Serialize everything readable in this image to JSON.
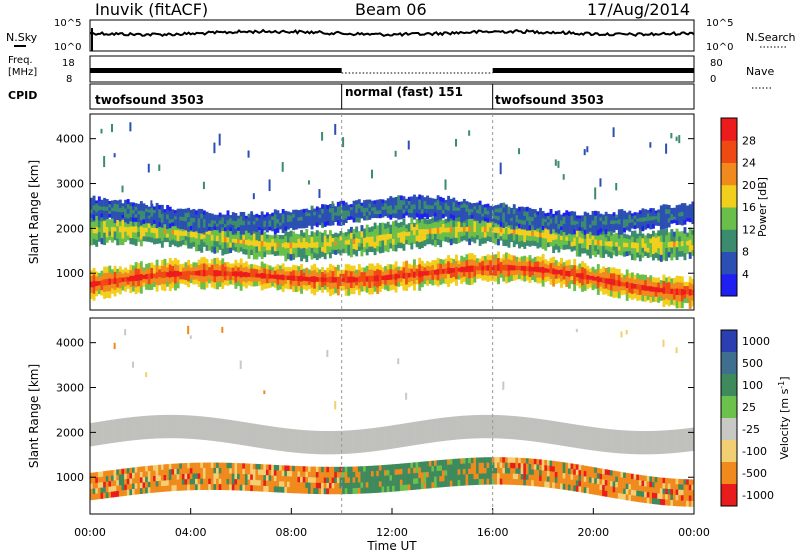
{
  "header": {
    "station": "Inuvik (fitACF)",
    "beam": "Beam 06",
    "date": "17/Aug/2014"
  },
  "top_panels": {
    "nsky_label": "N.Sky",
    "nsearch_label": "N.Search",
    "noise_ticks_left": [
      "10^5",
      "10^0"
    ],
    "noise_ticks_right": [
      "10^5",
      "10^0"
    ],
    "freq_label": "Freq.",
    "freq_unit": "[MHz]",
    "freq_ticks": [
      "18",
      "8"
    ],
    "nave_label": "Nave",
    "nave_ticks": [
      "80",
      "0"
    ],
    "cpid_label": "CPID",
    "cpid_segments": [
      {
        "label": "twofsound 3503",
        "start_hour": 0,
        "end_hour": 10
      },
      {
        "label": "normal (fast) 151",
        "start_hour": 10,
        "end_hour": 16
      },
      {
        "label": "twofsound 3503",
        "start_hour": 16,
        "end_hour": 24
      }
    ]
  },
  "chart_data": [
    {
      "type": "heatmap",
      "name": "power",
      "ylabel": "Slant Range [km]",
      "xlabel": "",
      "ylim": [
        180,
        4550
      ],
      "xlim": [
        0,
        24
      ],
      "y_ticks": [
        1000,
        2000,
        3000,
        4000
      ],
      "colorbar_label": "Power [dB]",
      "colorbar_ticks": [
        "4",
        "8",
        "12",
        "16",
        "20",
        "24",
        "28"
      ],
      "colorbar_range": [
        0,
        30
      ],
      "colors": [
        "#1f1ff2",
        "#2c4fb4",
        "#3b8b6e",
        "#69bf4a",
        "#f2cf1c",
        "#f08a1c",
        "#f04a14",
        "#ec1c1c"
      ],
      "bands": [
        {
          "center_km": 900,
          "width_km": 260,
          "value_db": 26
        },
        {
          "center_km": 1800,
          "width_km": 260,
          "value_db": 16
        },
        {
          "center_km": 2300,
          "width_km": 200,
          "value_db": 8
        }
      ]
    },
    {
      "type": "heatmap",
      "name": "velocity",
      "ylabel": "Slant Range [km]",
      "xlabel": "Time UT",
      "ylim": [
        180,
        4550
      ],
      "xlim": [
        0,
        24
      ],
      "y_ticks": [
        1000,
        2000,
        3000,
        4000
      ],
      "x_tick_labels": [
        "00:00",
        "04:00",
        "08:00",
        "12:00",
        "16:00",
        "20:00",
        "00:00"
      ],
      "x_tick_hours": [
        0,
        4,
        8,
        12,
        16,
        20,
        24
      ],
      "colorbar_label": "Velocity [m s",
      "colorbar_label_sup": "-1",
      "colorbar_label_end": "]",
      "colorbar_ticks": [
        "1000",
        "500",
        "100",
        "25",
        "-25",
        "-100",
        "-500",
        "-1000"
      ],
      "colors": [
        "#2b3fb0",
        "#3f6e8e",
        "#3e8a5c",
        "#6cc04c",
        "#c8c8c4",
        "#f2cf72",
        "#f08a1c",
        "#e81c1c"
      ],
      "ground_scatter_color": "#c0c0bc"
    }
  ]
}
